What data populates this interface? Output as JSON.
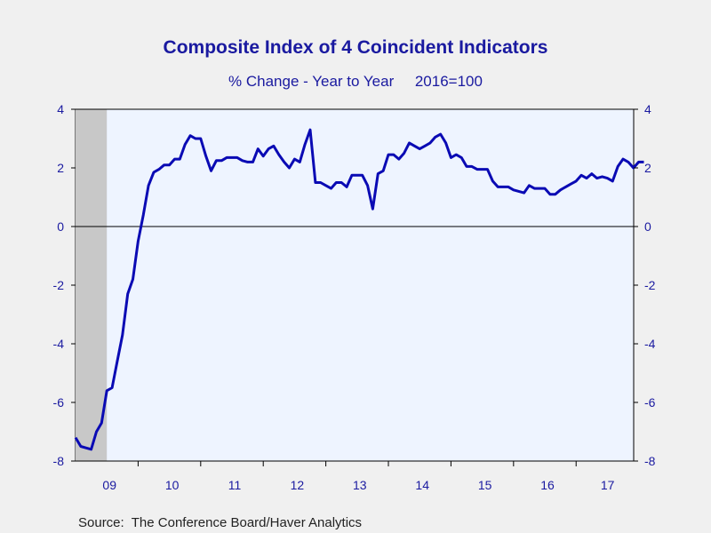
{
  "chart_data": {
    "type": "line",
    "title": "Composite Index of 4 Coincident Indicators",
    "subtitle": "% Change - Year to Year     2016=100",
    "source": "Source:  The Conference Board/Haver Analytics",
    "x_tick_labels": [
      "09",
      "10",
      "11",
      "12",
      "13",
      "14",
      "15",
      "16",
      "17"
    ],
    "y_tick_labels": [
      "4",
      "2",
      "0",
      "-2",
      "-4",
      "-6",
      "-8"
    ],
    "ylim": [
      -8,
      4
    ],
    "xlim": [
      2009.0,
      2017.92
    ],
    "y_ticks": [
      4,
      2,
      0,
      -2,
      -4,
      -6,
      -8
    ],
    "zero_line": true,
    "recession_shading": {
      "start": 2009.0,
      "end": 2009.5,
      "color": "#c8c8c8"
    },
    "colors": {
      "line": "#0a0ab4",
      "plot_background": "#eef4ff",
      "axis_text": "#1a1aa0"
    },
    "series": [
      {
        "values": [
          -7.2,
          -7.5,
          -7.55,
          -7.6,
          -7.0,
          -6.7,
          -5.6,
          -5.5,
          -4.6,
          -3.7,
          -2.3,
          -1.8,
          -0.5,
          0.4,
          1.4,
          1.85,
          1.95,
          2.1,
          2.1,
          2.3,
          2.3,
          2.8,
          3.1,
          3.0,
          3.0,
          2.4,
          1.9,
          2.25,
          2.25,
          2.35,
          2.35,
          2.35,
          2.25,
          2.2,
          2.2,
          2.65,
          2.4,
          2.65,
          2.75,
          2.45,
          2.2,
          2.0,
          2.3,
          2.2,
          2.8,
          3.3,
          1.5,
          1.5,
          1.4,
          1.3,
          1.5,
          1.5,
          1.35,
          1.75,
          1.75,
          1.75,
          1.4,
          0.6,
          1.8,
          1.9,
          2.45,
          2.45,
          2.3,
          2.5,
          2.85,
          2.75,
          2.65,
          2.75,
          2.85,
          3.05,
          3.15,
          2.85,
          2.35,
          2.45,
          2.35,
          2.05,
          2.05,
          1.95,
          1.95,
          1.95,
          1.55,
          1.35,
          1.35,
          1.35,
          1.25,
          1.2,
          1.15,
          1.4,
          1.3,
          1.3,
          1.3,
          1.1,
          1.1,
          1.25,
          1.35,
          1.45,
          1.55,
          1.75,
          1.65,
          1.8,
          1.65,
          1.7,
          1.65,
          1.55,
          2.05,
          2.3,
          2.2,
          2.0,
          2.2,
          2.2
        ]
      }
    ]
  }
}
